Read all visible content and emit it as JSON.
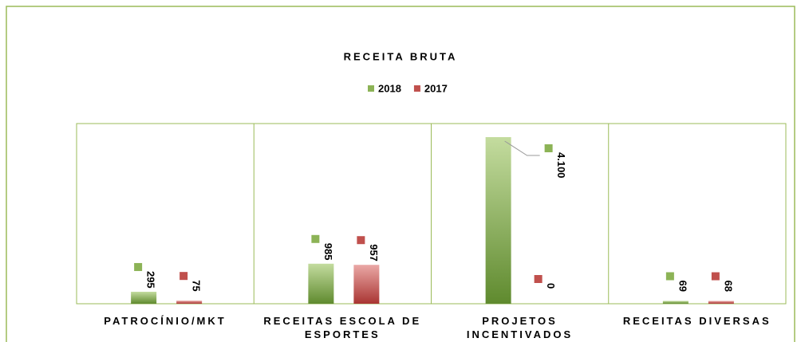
{
  "chart_data": {
    "type": "bar",
    "title": "RECEITA BRUTA",
    "categories": [
      "PATROCÍNIO/MKT",
      "RECEITAS ESCOLA DE ESPORTES",
      "PROJETOS INCENTIVADOS",
      "RECEITAS DIVERSAS"
    ],
    "series": [
      {
        "name": "2018",
        "color": "#8cb356",
        "values": [
          295,
          985,
          4100,
          69
        ],
        "value_labels": [
          "295",
          "985",
          "4.100",
          "69"
        ]
      },
      {
        "name": "2017",
        "color": "#c0504d",
        "values": [
          75,
          957,
          0,
          68
        ]
      }
    ],
    "legend": "top"
  }
}
